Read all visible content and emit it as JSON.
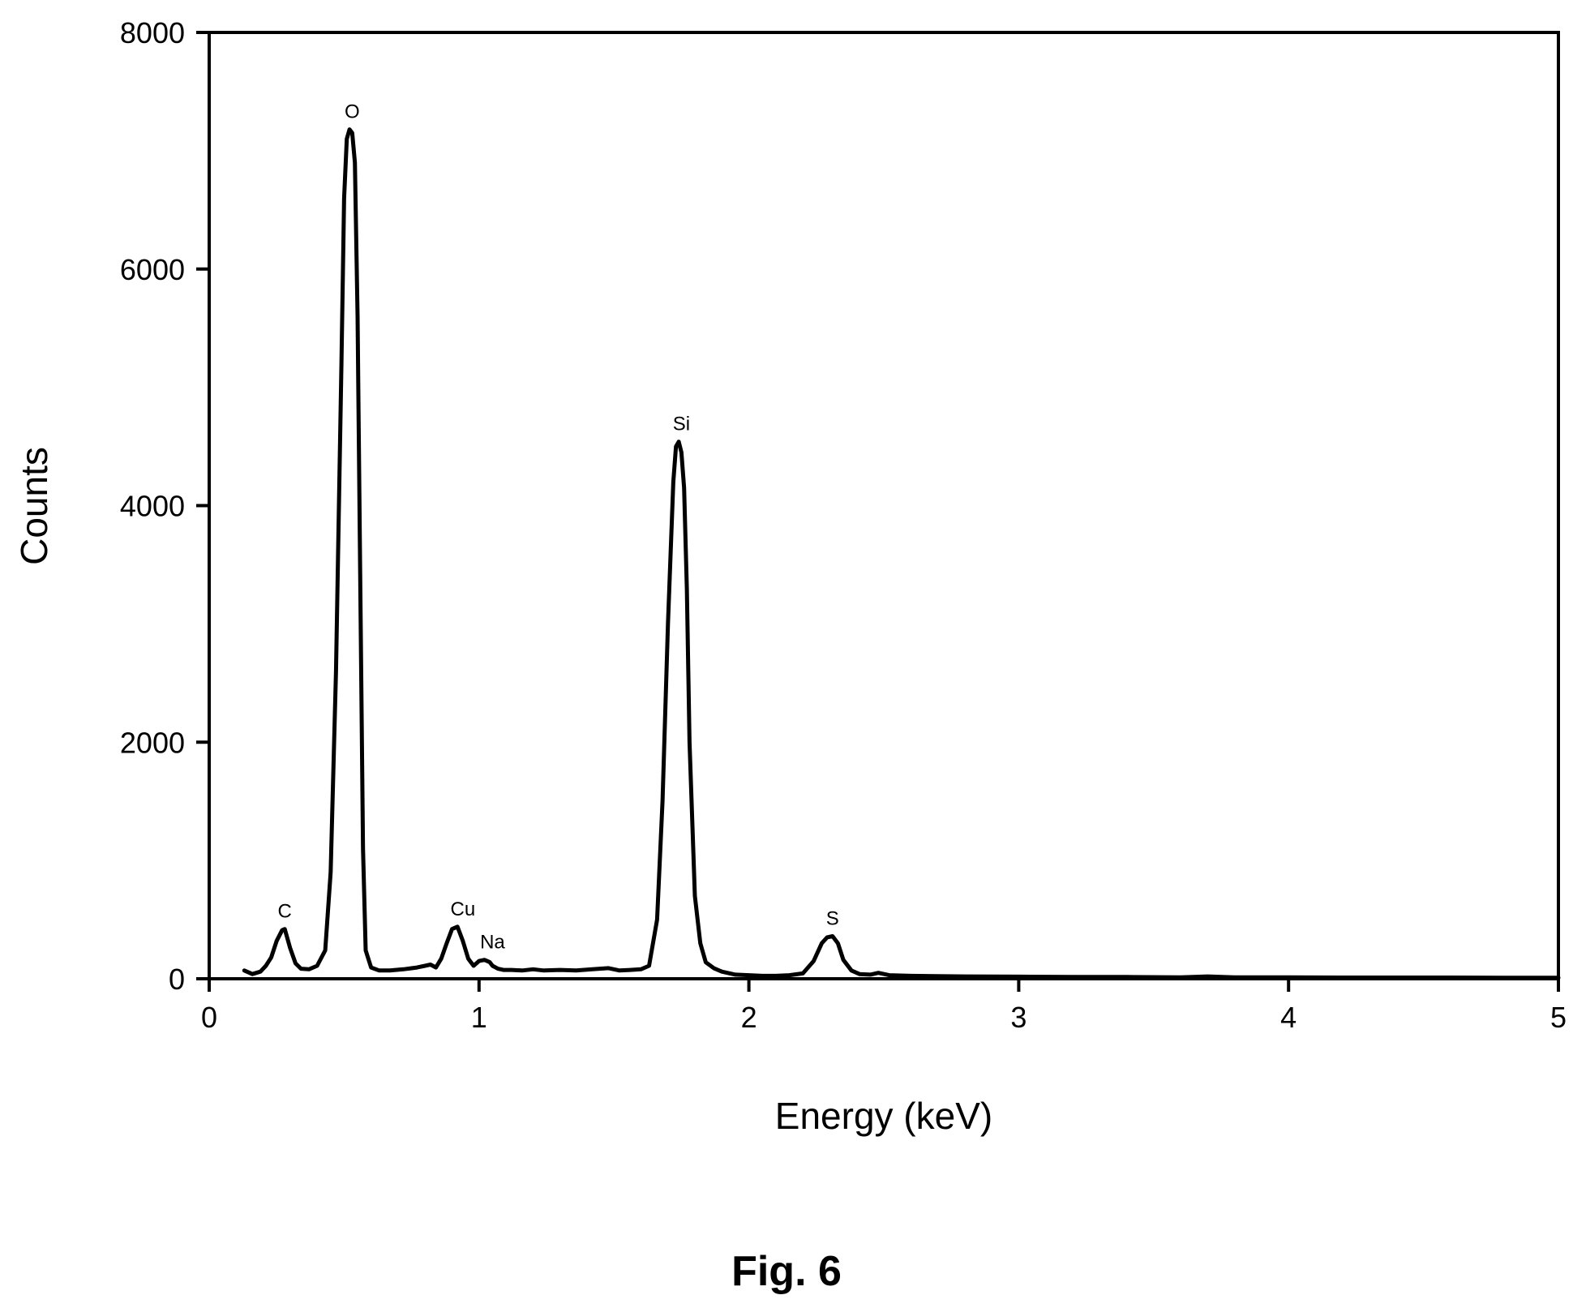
{
  "figure_caption": "Fig. 6",
  "chart_data": {
    "type": "line",
    "xlabel": "Energy (keV)",
    "ylabel": "Counts",
    "xlim": [
      0,
      5
    ],
    "ylim": [
      0,
      8000
    ],
    "x_ticks": [
      0,
      1,
      2,
      3,
      4,
      5
    ],
    "y_ticks": [
      0,
      2000,
      4000,
      6000,
      8000
    ],
    "x_tick_labels": [
      "0",
      "1",
      "2",
      "3",
      "4",
      "5"
    ],
    "y_tick_labels": [
      "0",
      "2000",
      "4000",
      "6000",
      "8000"
    ],
    "grid": false,
    "line_color": "#000000",
    "peaks": [
      {
        "label": "C",
        "x": 0.28,
        "y": 420
      },
      {
        "label": "O",
        "x": 0.53,
        "y": 7180
      },
      {
        "label": "Cu",
        "x": 0.94,
        "y": 440
      },
      {
        "label": "Na",
        "x": 1.05,
        "y": 160
      },
      {
        "label": "Si",
        "x": 1.75,
        "y": 4540
      },
      {
        "label": "S",
        "x": 2.31,
        "y": 360
      }
    ],
    "series": [
      {
        "x": [
          0.13,
          0.16,
          0.19,
          0.21,
          0.23,
          0.25,
          0.27,
          0.28,
          0.3,
          0.32,
          0.34,
          0.37,
          0.4,
          0.43,
          0.45,
          0.47,
          0.49,
          0.5,
          0.51,
          0.52,
          0.53,
          0.54,
          0.55,
          0.56,
          0.57,
          0.58,
          0.6,
          0.63,
          0.67,
          0.72,
          0.77,
          0.8,
          0.82,
          0.84,
          0.86,
          0.88,
          0.9,
          0.92,
          0.94,
          0.96,
          0.98,
          1.0,
          1.02,
          1.04,
          1.05,
          1.07,
          1.09,
          1.12,
          1.16,
          1.2,
          1.24,
          1.3,
          1.36,
          1.42,
          1.48,
          1.52,
          1.56,
          1.6,
          1.63,
          1.66,
          1.68,
          1.7,
          1.72,
          1.73,
          1.74,
          1.75,
          1.76,
          1.77,
          1.78,
          1.8,
          1.82,
          1.84,
          1.87,
          1.9,
          1.95,
          2.0,
          2.05,
          2.1,
          2.15,
          2.2,
          2.24,
          2.27,
          2.29,
          2.31,
          2.33,
          2.35,
          2.38,
          2.41,
          2.45,
          2.48,
          2.52,
          2.6,
          2.8,
          3.0,
          3.2,
          3.4,
          3.6,
          3.7,
          3.8,
          4.0,
          4.2,
          4.4,
          4.6,
          4.8,
          5.0
        ],
        "y": [
          70,
          40,
          60,
          110,
          180,
          320,
          410,
          420,
          260,
          130,
          85,
          80,
          110,
          240,
          900,
          2600,
          5200,
          6600,
          7100,
          7180,
          7150,
          6900,
          5600,
          3300,
          1100,
          240,
          95,
          70,
          70,
          80,
          95,
          110,
          120,
          95,
          170,
          300,
          420,
          440,
          320,
          170,
          110,
          150,
          160,
          140,
          110,
          85,
          75,
          75,
          70,
          80,
          70,
          75,
          70,
          80,
          90,
          70,
          75,
          80,
          110,
          500,
          1500,
          3000,
          4200,
          4500,
          4540,
          4450,
          4150,
          3300,
          2000,
          700,
          300,
          140,
          90,
          60,
          35,
          30,
          25,
          25,
          30,
          45,
          150,
          300,
          350,
          360,
          300,
          160,
          70,
          40,
          35,
          50,
          30,
          25,
          20,
          18,
          15,
          15,
          12,
          20,
          12,
          12,
          10,
          10,
          10,
          8,
          8
        ]
      }
    ]
  }
}
